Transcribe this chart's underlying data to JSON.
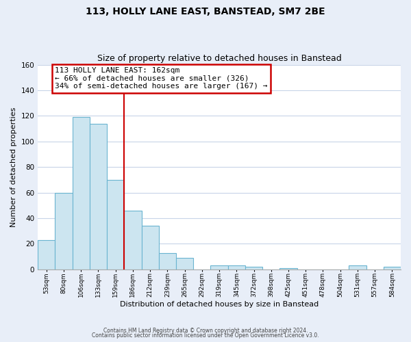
{
  "title": "113, HOLLY LANE EAST, BANSTEAD, SM7 2BE",
  "subtitle": "Size of property relative to detached houses in Banstead",
  "xlabel": "Distribution of detached houses by size in Banstead",
  "ylabel": "Number of detached properties",
  "bar_labels": [
    "53sqm",
    "80sqm",
    "106sqm",
    "133sqm",
    "159sqm",
    "186sqm",
    "212sqm",
    "239sqm",
    "265sqm",
    "292sqm",
    "319sqm",
    "345sqm",
    "372sqm",
    "398sqm",
    "425sqm",
    "451sqm",
    "478sqm",
    "504sqm",
    "531sqm",
    "557sqm",
    "584sqm"
  ],
  "bar_values": [
    23,
    60,
    119,
    114,
    70,
    46,
    34,
    13,
    9,
    0,
    3,
    3,
    2,
    0,
    1,
    0,
    0,
    0,
    3,
    0,
    2
  ],
  "bar_color": "#cce5f0",
  "bar_edge_color": "#6ab4d0",
  "annotation_text_line1": "113 HOLLY LANE EAST: 162sqm",
  "annotation_text_line2": "← 66% of detached houses are smaller (326)",
  "annotation_text_line3": "34% of semi-detached houses are larger (167) →",
  "annotation_box_color": "white",
  "annotation_box_edge_color": "#cc0000",
  "vline_color": "#cc0000",
  "vline_x_index": 4,
  "ylim": [
    0,
    160
  ],
  "yticks": [
    0,
    20,
    40,
    60,
    80,
    100,
    120,
    140,
    160
  ],
  "footnote1": "Contains HM Land Registry data © Crown copyright and database right 2024.",
  "footnote2": "Contains public sector information licensed under the Open Government Licence v3.0.",
  "bg_color": "#e8eef8",
  "plot_bg_color": "white",
  "grid_color": "#c8d4e8"
}
